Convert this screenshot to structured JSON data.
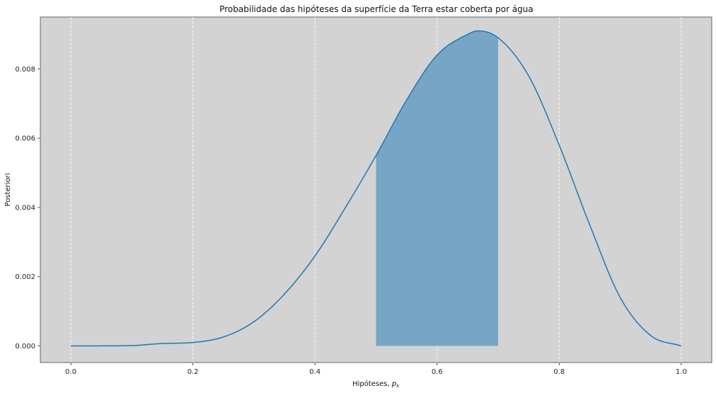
{
  "chart_data": {
    "type": "line",
    "title": "Probabilidade das hipóteses da superfície da Terra estar coberta por água",
    "xlabel": "Hipóteses, ",
    "xlabel_math": "p",
    "xlabel_sub": "s",
    "ylabel": "Posteriori",
    "xlim": [
      -0.05,
      1.05
    ],
    "ylim": [
      -0.00048,
      0.0095
    ],
    "x_ticks": [
      0.0,
      0.2,
      0.4,
      0.6,
      0.8,
      1.0
    ],
    "x_tick_labels": [
      "0.0",
      "0.2",
      "0.4",
      "0.6",
      "0.8",
      "1.0"
    ],
    "y_ticks": [
      0.0,
      0.002,
      0.004,
      0.006,
      0.008
    ],
    "y_tick_labels": [
      "0.000",
      "0.002",
      "0.004",
      "0.006",
      "0.008"
    ],
    "grid": "vertical, white dashed",
    "background_color": "#d3d3d3",
    "series": [
      {
        "color": "#1f77b4",
        "x": [
          0.0,
          0.05,
          0.1,
          0.15,
          0.2,
          0.25,
          0.3,
          0.35,
          0.4,
          0.45,
          0.5,
          0.55,
          0.6,
          0.65,
          0.6667,
          0.7,
          0.75,
          0.8,
          0.85,
          0.9,
          0.95,
          1.0
        ],
        "y": [
          0.0,
          2e-06,
          1e-05,
          7e-05,
          0.0001,
          0.00026,
          0.0007,
          0.0015,
          0.0026,
          0.004,
          0.0055,
          0.0071,
          0.0084,
          0.009,
          0.0091,
          0.0089,
          0.0078,
          0.0058,
          0.0035,
          0.0014,
          0.0003,
          0.0
        ]
      }
    ],
    "shaded_region": {
      "x_start": 0.5,
      "x_end": 0.7,
      "color": "#77a5c5"
    }
  }
}
